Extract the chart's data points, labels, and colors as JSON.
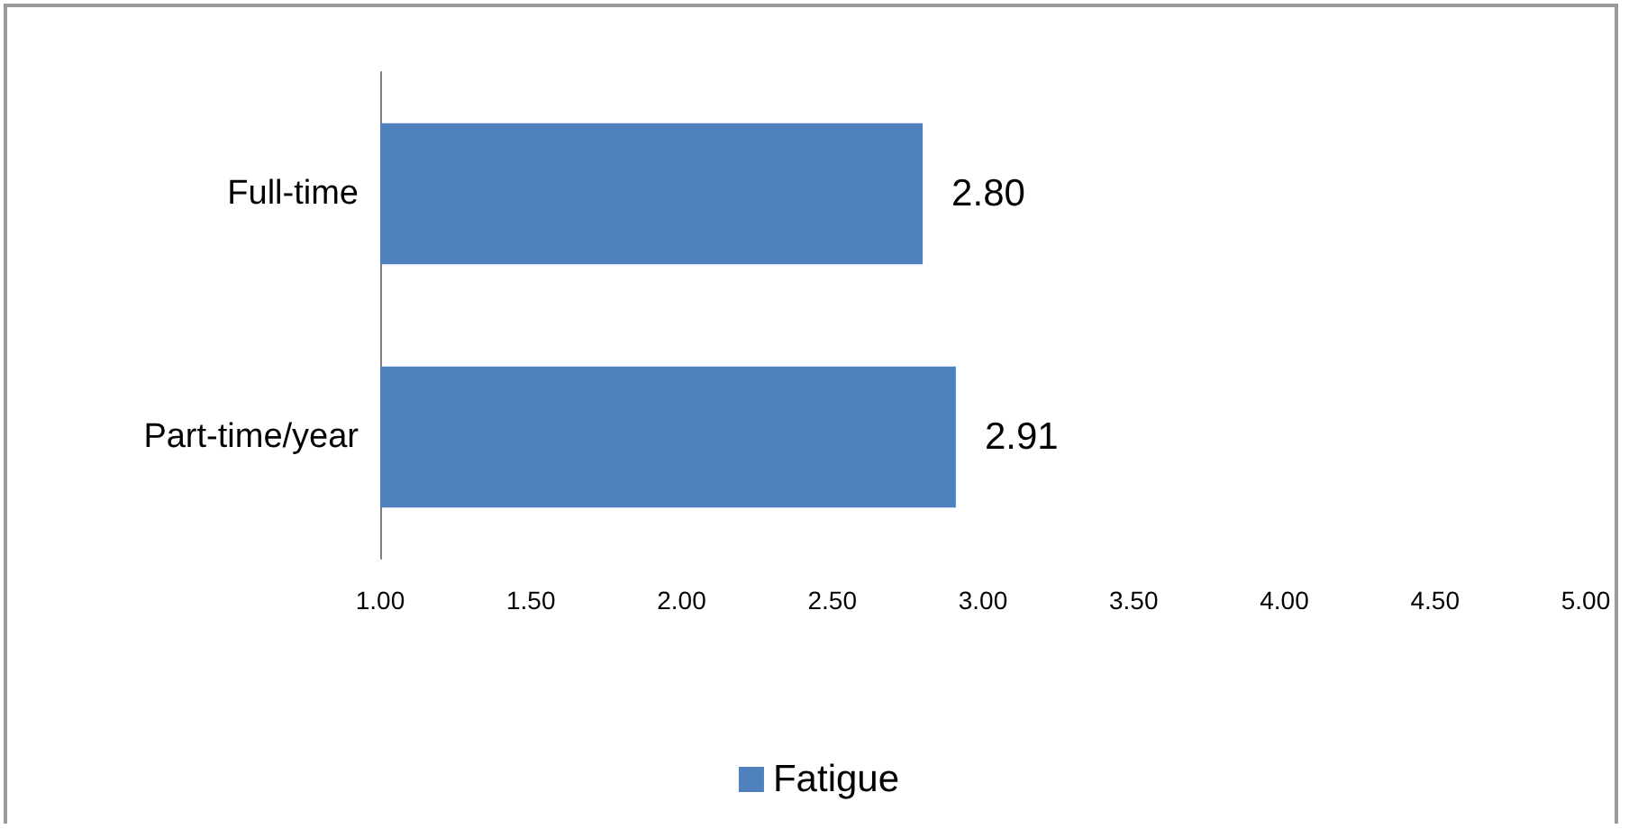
{
  "chart_data": {
    "type": "bar",
    "orientation": "horizontal",
    "categories": [
      "Full-time",
      "Part-time/year"
    ],
    "series": [
      {
        "name": "Fatigue",
        "color": "#4f81bd",
        "values": [
          2.8,
          2.91
        ],
        "value_labels": [
          "2.80",
          "2.91"
        ]
      }
    ],
    "xlim": [
      1,
      5
    ],
    "xticks": [
      {
        "value": 1,
        "label": "1.00"
      },
      {
        "value": 1.5,
        "label": "1.50"
      },
      {
        "value": 2,
        "label": "2.00"
      },
      {
        "value": 2.5,
        "label": "2.50"
      },
      {
        "value": 3,
        "label": "3.00"
      },
      {
        "value": 3.5,
        "label": "3.50"
      },
      {
        "value": 4,
        "label": "4.00"
      },
      {
        "value": 4.5,
        "label": "4.50"
      },
      {
        "value": 5,
        "label": "5.00"
      }
    ],
    "grid": false,
    "legend": "bottom"
  }
}
